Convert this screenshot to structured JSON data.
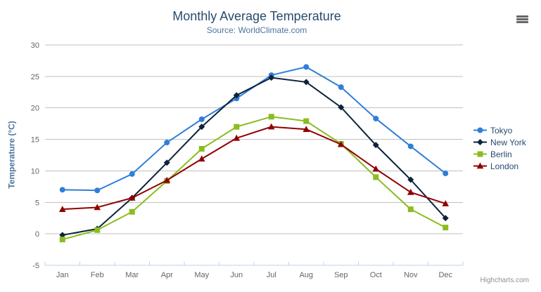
{
  "header": {
    "title": "Monthly Average Temperature",
    "subtitle": "Source: WorldClimate.com"
  },
  "icons": {
    "menu": "hamburger-menu"
  },
  "credit": "Highcharts.com",
  "chart_data": {
    "type": "line",
    "title": "Monthly Average Temperature",
    "subtitle": "Source: WorldClimate.com",
    "categories": [
      "Jan",
      "Feb",
      "Mar",
      "Apr",
      "May",
      "Jun",
      "Jul",
      "Aug",
      "Sep",
      "Oct",
      "Nov",
      "Dec"
    ],
    "series": [
      {
        "name": "Tokyo",
        "color": "#2f7ed8",
        "marker": "circle",
        "values": [
          7.0,
          6.9,
          9.5,
          14.5,
          18.2,
          21.5,
          25.2,
          26.5,
          23.3,
          18.3,
          13.9,
          9.6
        ]
      },
      {
        "name": "New York",
        "color": "#0d233a",
        "marker": "diamond",
        "values": [
          -0.2,
          0.8,
          5.7,
          11.3,
          17.0,
          22.0,
          24.8,
          24.1,
          20.1,
          14.1,
          8.6,
          2.5
        ]
      },
      {
        "name": "Berlin",
        "color": "#8bbc21",
        "marker": "square",
        "values": [
          -0.9,
          0.6,
          3.5,
          8.4,
          13.5,
          17.0,
          18.6,
          17.9,
          14.3,
          9.0,
          3.9,
          1.0
        ]
      },
      {
        "name": "London",
        "color": "#910000",
        "marker": "triangle",
        "values": [
          3.9,
          4.2,
          5.7,
          8.5,
          11.9,
          15.2,
          17.0,
          16.6,
          14.2,
          10.3,
          6.6,
          4.8
        ]
      }
    ],
    "yAxis": {
      "title": "Temperature (°C)",
      "min": -5,
      "max": 30,
      "tickInterval": 5
    },
    "xlabel": "",
    "ylabel": "Temperature (°C)",
    "ylim": [
      -5,
      30
    ],
    "grid": true,
    "legend_position": "right",
    "colors": {
      "title": "#274b6d",
      "subtitle": "#4d759e",
      "axis_labels": "#666666",
      "gridline": "#C0C0C0",
      "axis_line": "#C0D0E0",
      "legend_text": "#274b6d",
      "credit": "#909090"
    }
  }
}
